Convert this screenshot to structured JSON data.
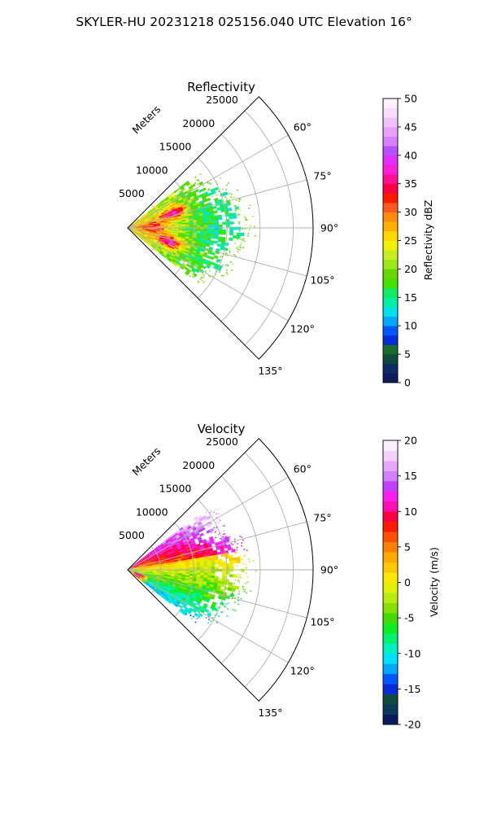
{
  "suptitle": "SKYLER-HU  20231218  025156.040 UTC Elevation 16°",
  "chart_data": [
    {
      "type": "polar-sector",
      "title": "Reflectivity",
      "range_label": "Meters",
      "range_ticks": [
        5000,
        10000,
        15000,
        20000,
        25000
      ],
      "range_max": 28000,
      "azimuth_range_deg": [
        45,
        135
      ],
      "azimuth_ticks": [
        "60°",
        "75°",
        "90°",
        "105°",
        "120°",
        "135°"
      ],
      "grid": true,
      "data_extent": {
        "range_m": [
          0,
          16500
        ],
        "azimuth_deg": [
          52,
          128
        ],
        "description_values": "maxima ~40-45 dBZ near 7000 m at ~72° and ~108°, 20-30 dBZ core along 90°, 15-20 dBZ at outer edge"
      },
      "colorbar": {
        "label": "Reflectivity dBZ",
        "min": 0,
        "max": 50,
        "ticks": [
          0,
          5,
          10,
          15,
          20,
          25,
          30,
          35,
          40,
          45,
          50
        ],
        "colors": [
          "#0b1a5a",
          "#0d2c66",
          "#0e4a3e",
          "#1a6a2a",
          "#0a2cd8",
          "#0058ff",
          "#00a8ff",
          "#00e0e8",
          "#00f0a8",
          "#10ee60",
          "#44e000",
          "#66d800",
          "#9ce818",
          "#c8ee20",
          "#f0f000",
          "#ffd800",
          "#ffb000",
          "#ff8c10",
          "#ff5a1e",
          "#ff1a00",
          "#ff0040",
          "#ff1090",
          "#ff20d8",
          "#e030ff",
          "#b850ff",
          "#d880ff",
          "#e8a0ff",
          "#f2c0ff",
          "#f8dcff",
          "#fdf0ff"
        ]
      }
    },
    {
      "type": "polar-sector",
      "title": "Velocity",
      "range_label": "Meters",
      "range_ticks": [
        5000,
        10000,
        15000,
        20000,
        25000
      ],
      "range_max": 28000,
      "azimuth_range_deg": [
        45,
        135
      ],
      "azimuth_ticks": [
        "60°",
        "75°",
        "90°",
        "105°",
        "120°",
        "135°"
      ],
      "grid": true,
      "data_extent": {
        "range_m": [
          0,
          16500
        ],
        "azimuth_deg": [
          52,
          128
        ],
        "description_values": "+15 to +20 m/s (magenta) at far range near 55-70°, +5 to +10 (orange/red) 65-85°, ~0 (yellow) near 90°, -5 (green) 95-105°, -10 to -15 (cyan/blue) 110-125°"
      },
      "colorbar": {
        "label": "Velocity (m/s)",
        "min": -20,
        "max": 20,
        "ticks": [
          -20,
          -15,
          -10,
          -5,
          0,
          5,
          10,
          15,
          20
        ],
        "colors": [
          "#0b1a5a",
          "#0d3a5a",
          "#0e4a3e",
          "#0a2cd8",
          "#0058ff",
          "#00a8ff",
          "#00e0ff",
          "#00f0c0",
          "#00f070",
          "#10ee20",
          "#44dc00",
          "#88e000",
          "#b8ec10",
          "#e0f000",
          "#ffe800",
          "#ffc800",
          "#ffa800",
          "#ff8000",
          "#ff5000",
          "#ff1a00",
          "#ff0040",
          "#ff10b0",
          "#ff20f0",
          "#c040ff",
          "#d080ff",
          "#e8a8ff",
          "#f4d0ff",
          "#fbeeff"
        ]
      }
    }
  ]
}
